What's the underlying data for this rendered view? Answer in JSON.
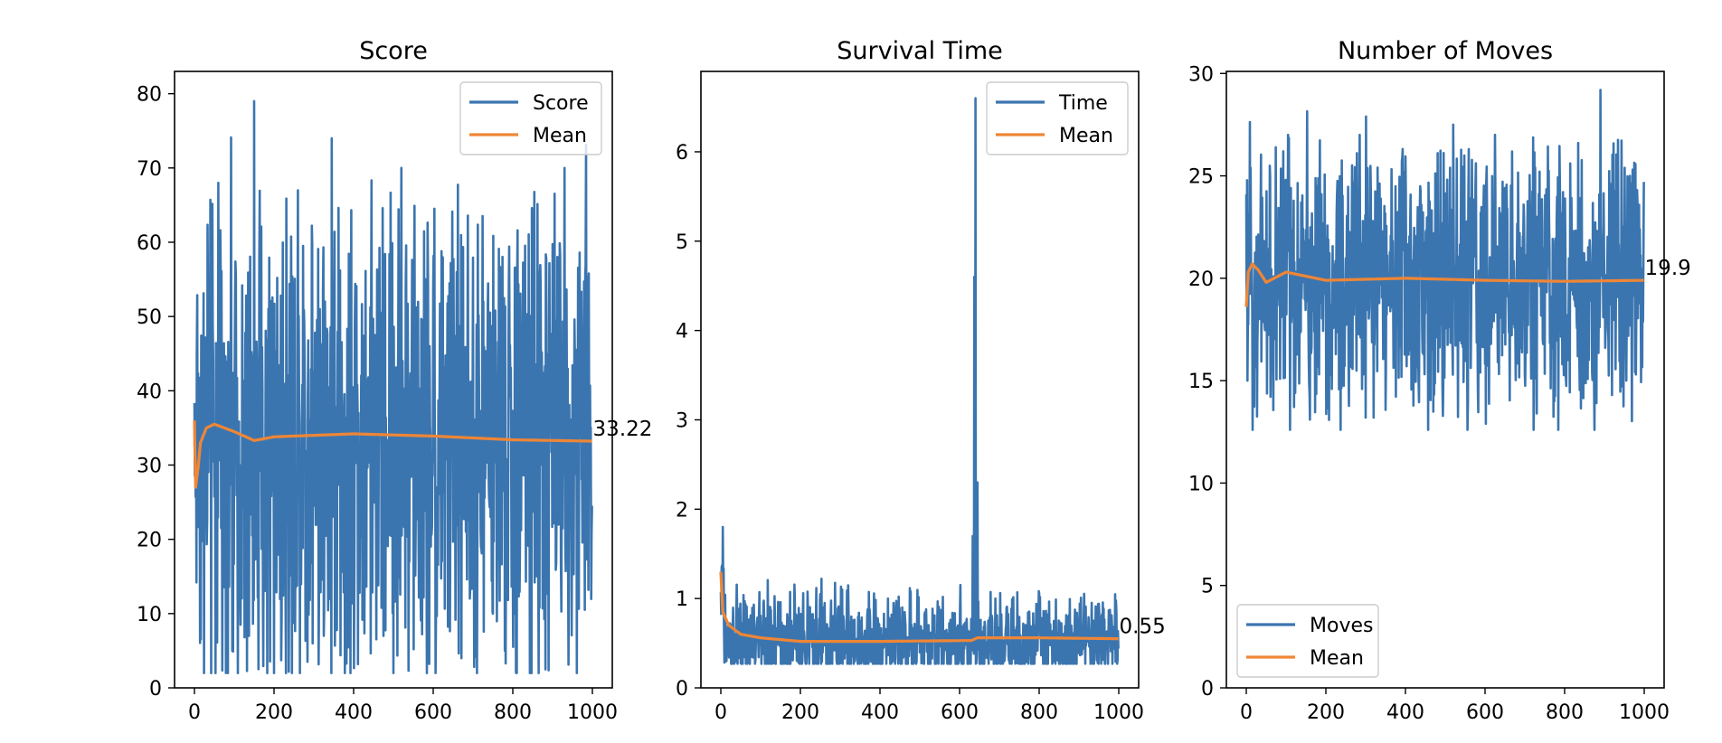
{
  "colors": {
    "raw_series": "#3b75af",
    "mean_series": "#ef8636",
    "axes": "#000000",
    "legend_border": "#cccccc"
  },
  "chart_data": [
    {
      "type": "line",
      "title": "Score",
      "xlabel": "",
      "ylabel": "",
      "xlim": [
        -50,
        1050
      ],
      "ylim": [
        0,
        83
      ],
      "xticks": [
        0,
        200,
        400,
        600,
        800,
        1000
      ],
      "yticks": [
        0,
        10,
        20,
        30,
        40,
        50,
        60,
        70,
        80
      ],
      "n_points": 1000,
      "series": [
        {
          "name": "Score",
          "color": "#3b75af",
          "mean": 33.22,
          "low_band": 18,
          "high_band": 48,
          "min": 2,
          "max": 79,
          "spikes": [
            [
              150,
              79
            ],
            [
              345,
              74
            ],
            [
              930,
              70
            ],
            [
              520,
              70
            ],
            [
              260,
              67
            ],
            [
              60,
              68
            ],
            [
              230,
              2
            ],
            [
              865,
              2
            ],
            [
              95,
              5
            ],
            [
              780,
              5
            ],
            [
              475,
              7
            ]
          ]
        },
        {
          "name": "Mean",
          "color": "#ef8636",
          "values_at": [
            [
              0,
              36
            ],
            [
              3,
              27
            ],
            [
              10,
              30
            ],
            [
              15,
              33
            ],
            [
              30,
              35
            ],
            [
              50,
              35.5
            ],
            [
              100,
              34.5
            ],
            [
              150,
              33.3
            ],
            [
              200,
              33.8
            ],
            [
              400,
              34.2
            ],
            [
              600,
              33.9
            ],
            [
              800,
              33.4
            ],
            [
              1000,
              33.22
            ]
          ]
        }
      ],
      "end_label": "33.22",
      "legend": {
        "position": "upper right",
        "entries": [
          "Score",
          "Mean"
        ]
      }
    },
    {
      "type": "line",
      "title": "Survival Time",
      "xlabel": "",
      "ylabel": "",
      "xlim": [
        -50,
        1050
      ],
      "ylim": [
        0,
        6.9
      ],
      "xticks": [
        0,
        200,
        400,
        600,
        800,
        1000
      ],
      "yticks": [
        0,
        1,
        2,
        3,
        4,
        5,
        6
      ],
      "n_points": 1000,
      "series": [
        {
          "name": "Time",
          "color": "#3b75af",
          "mean": 0.55,
          "low_band": 0.3,
          "high_band": 0.78,
          "min": 0.25,
          "max": 6.6,
          "spikes": [
            [
              5,
              1.8
            ],
            [
              640,
              6.6
            ],
            [
              637,
              4.6
            ],
            [
              633,
              1.7
            ],
            [
              645,
              2.3
            ],
            [
              305,
              1.1
            ],
            [
              420,
              1.0
            ],
            [
              250,
              1.05
            ],
            [
              60,
              0.97
            ]
          ]
        },
        {
          "name": "Mean",
          "color": "#ef8636",
          "values_at": [
            [
              0,
              1.3
            ],
            [
              5,
              0.85
            ],
            [
              20,
              0.7
            ],
            [
              50,
              0.6
            ],
            [
              100,
              0.56
            ],
            [
              200,
              0.52
            ],
            [
              400,
              0.52
            ],
            [
              630,
              0.53
            ],
            [
              645,
              0.56
            ],
            [
              800,
              0.56
            ],
            [
              1000,
              0.55
            ]
          ]
        }
      ],
      "end_label": "0.55",
      "legend": {
        "position": "upper right",
        "entries": [
          "Time",
          "Mean"
        ]
      }
    },
    {
      "type": "line",
      "title": "Number of Moves",
      "xlabel": "",
      "ylabel": "",
      "xlim": [
        -50,
        1050
      ],
      "ylim": [
        0,
        30.1
      ],
      "xticks": [
        0,
        200,
        400,
        600,
        800,
        1000
      ],
      "yticks": [
        0,
        5,
        10,
        15,
        20,
        25,
        30
      ],
      "n_points": 1000,
      "series": [
        {
          "name": "Moves",
          "color": "#3b75af",
          "mean": 19.9,
          "low_band": 16.8,
          "high_band": 23,
          "min": 12.6,
          "max": 29.2,
          "spikes": [
            [
              890,
              29.2
            ],
            [
              520,
              27.5
            ],
            [
              285,
              27
            ],
            [
              625,
              27
            ],
            [
              160,
              13.1
            ],
            [
              300,
              13.2
            ],
            [
              320,
              13.2
            ],
            [
              875,
              12.6
            ],
            [
              730,
              13.4
            ]
          ]
        },
        {
          "name": "Mean",
          "color": "#ef8636",
          "values_at": [
            [
              0,
              18.6
            ],
            [
              5,
              20.3
            ],
            [
              15,
              20.7
            ],
            [
              30,
              20.4
            ],
            [
              50,
              19.8
            ],
            [
              100,
              20.3
            ],
            [
              200,
              19.9
            ],
            [
              400,
              20.0
            ],
            [
              600,
              19.9
            ],
            [
              800,
              19.85
            ],
            [
              1000,
              19.9
            ]
          ]
        }
      ],
      "end_label": "19.9",
      "legend": {
        "position": "lower left",
        "entries": [
          "Moves",
          "Mean"
        ]
      }
    }
  ]
}
